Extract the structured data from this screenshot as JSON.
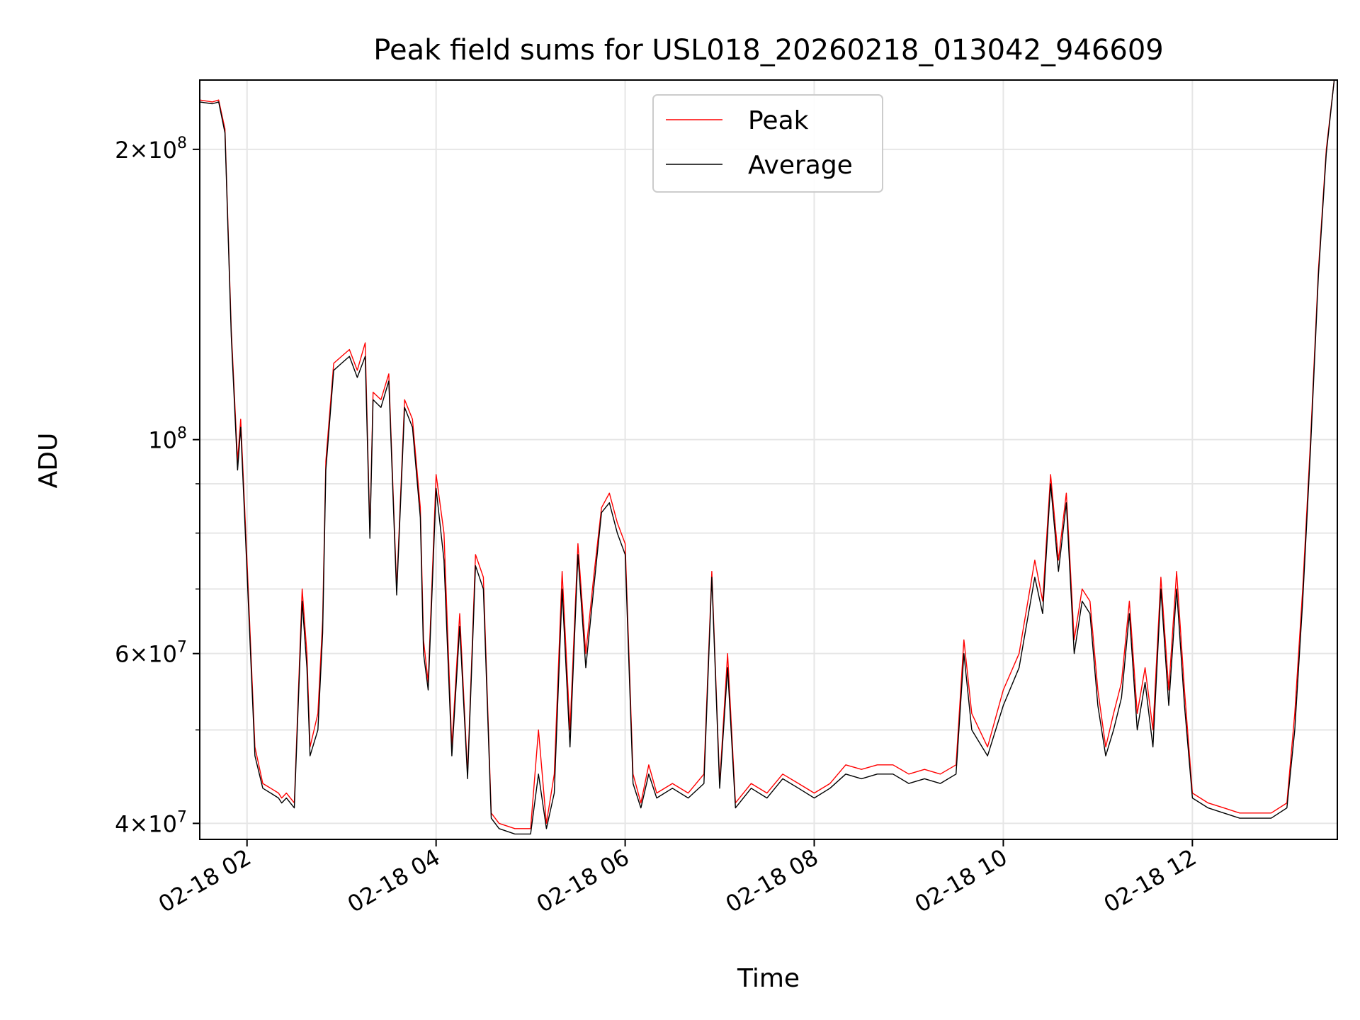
{
  "chart_data": {
    "type": "line",
    "title": "Peak field sums for USL018_20260218_013042_946609",
    "xlabel": "Time",
    "ylabel": "ADU",
    "y_scale": "log",
    "grid": true,
    "legend_position": "top-center",
    "xlim": [
      "2026-02-18 01:30",
      "2026-02-18 13:32"
    ],
    "ylim": [
      38500000,
      236000000
    ],
    "x_ticks": [
      {
        "value": "2026-02-18 02:00",
        "label": "02-18 02"
      },
      {
        "value": "2026-02-18 04:00",
        "label": "02-18 04"
      },
      {
        "value": "2026-02-18 06:00",
        "label": "02-18 06"
      },
      {
        "value": "2026-02-18 08:00",
        "label": "02-18 08"
      },
      {
        "value": "2026-02-18 10:00",
        "label": "02-18 10"
      },
      {
        "value": "2026-02-18 12:00",
        "label": "02-18 12"
      }
    ],
    "y_ticks": [
      {
        "value": 40000000,
        "mantissa": "4",
        "exponent": "7"
      },
      {
        "value": 60000000,
        "mantissa": "6",
        "exponent": "7"
      },
      {
        "value": 100000000,
        "mantissa": "",
        "exponent": "8"
      },
      {
        "value": 200000000,
        "mantissa": "2",
        "exponent": "8"
      }
    ],
    "y_minor_ticks": [
      50000000,
      70000000,
      80000000,
      90000000
    ],
    "series": [
      {
        "name": "Peak",
        "color": "#ff0000",
        "x": [
          "2026-02-18 01:30",
          "2026-02-18 01:38",
          "2026-02-18 01:42",
          "2026-02-18 01:46",
          "2026-02-18 01:50",
          "2026-02-18 01:54",
          "2026-02-18 01:56",
          "2026-02-18 02:00",
          "2026-02-18 02:05",
          "2026-02-18 02:10",
          "2026-02-18 02:15",
          "2026-02-18 02:20",
          "2026-02-18 02:22",
          "2026-02-18 02:25",
          "2026-02-18 02:30",
          "2026-02-18 02:35",
          "2026-02-18 02:38",
          "2026-02-18 02:40",
          "2026-02-18 02:45",
          "2026-02-18 02:48",
          "2026-02-18 02:50",
          "2026-02-18 02:55",
          "2026-02-18 03:00",
          "2026-02-18 03:05",
          "2026-02-18 03:10",
          "2026-02-18 03:15",
          "2026-02-18 03:18",
          "2026-02-18 03:20",
          "2026-02-18 03:25",
          "2026-02-18 03:30",
          "2026-02-18 03:35",
          "2026-02-18 03:40",
          "2026-02-18 03:45",
          "2026-02-18 03:50",
          "2026-02-18 03:52",
          "2026-02-18 03:55",
          "2026-02-18 04:00",
          "2026-02-18 04:05",
          "2026-02-18 04:10",
          "2026-02-18 04:15",
          "2026-02-18 04:20",
          "2026-02-18 04:25",
          "2026-02-18 04:30",
          "2026-02-18 04:35",
          "2026-02-18 04:40",
          "2026-02-18 04:50",
          "2026-02-18 05:00",
          "2026-02-18 05:05",
          "2026-02-18 05:10",
          "2026-02-18 05:15",
          "2026-02-18 05:20",
          "2026-02-18 05:25",
          "2026-02-18 05:30",
          "2026-02-18 05:35",
          "2026-02-18 05:40",
          "2026-02-18 05:45",
          "2026-02-18 05:50",
          "2026-02-18 05:55",
          "2026-02-18 06:00",
          "2026-02-18 06:05",
          "2026-02-18 06:10",
          "2026-02-18 06:15",
          "2026-02-18 06:20",
          "2026-02-18 06:30",
          "2026-02-18 06:40",
          "2026-02-18 06:50",
          "2026-02-18 06:55",
          "2026-02-18 07:00",
          "2026-02-18 07:05",
          "2026-02-18 07:10",
          "2026-02-18 07:20",
          "2026-02-18 07:30",
          "2026-02-18 07:40",
          "2026-02-18 07:50",
          "2026-02-18 08:00",
          "2026-02-18 08:10",
          "2026-02-18 08:20",
          "2026-02-18 08:30",
          "2026-02-18 08:40",
          "2026-02-18 08:50",
          "2026-02-18 09:00",
          "2026-02-18 09:10",
          "2026-02-18 09:20",
          "2026-02-18 09:30",
          "2026-02-18 09:35",
          "2026-02-18 09:40",
          "2026-02-18 09:50",
          "2026-02-18 10:00",
          "2026-02-18 10:10",
          "2026-02-18 10:20",
          "2026-02-18 10:25",
          "2026-02-18 10:30",
          "2026-02-18 10:35",
          "2026-02-18 10:40",
          "2026-02-18 10:45",
          "2026-02-18 10:50",
          "2026-02-18 10:55",
          "2026-02-18 11:00",
          "2026-02-18 11:05",
          "2026-02-18 11:10",
          "2026-02-18 11:15",
          "2026-02-18 11:20",
          "2026-02-18 11:25",
          "2026-02-18 11:30",
          "2026-02-18 11:35",
          "2026-02-18 11:40",
          "2026-02-18 11:45",
          "2026-02-18 11:50",
          "2026-02-18 11:55",
          "2026-02-18 12:00",
          "2026-02-18 12:10",
          "2026-02-18 12:20",
          "2026-02-18 12:30",
          "2026-02-18 12:40",
          "2026-02-18 12:50",
          "2026-02-18 13:00",
          "2026-02-18 13:05",
          "2026-02-18 13:10",
          "2026-02-18 13:15",
          "2026-02-18 13:20",
          "2026-02-18 13:25",
          "2026-02-18 13:30",
          "2026-02-18 13:32"
        ],
        "values": [
          225000000,
          224000000,
          225000000,
          210000000,
          130000000,
          95000000,
          105000000,
          75000000,
          48000000,
          44000000,
          43500000,
          43000000,
          42500000,
          43000000,
          42000000,
          70000000,
          60000000,
          48000000,
          52000000,
          65000000,
          95000000,
          120000000,
          122000000,
          124000000,
          118000000,
          126000000,
          80000000,
          112000000,
          110000000,
          117000000,
          70000000,
          110000000,
          105000000,
          85000000,
          62000000,
          56000000,
          92000000,
          80000000,
          48000000,
          66000000,
          45000000,
          76000000,
          72000000,
          41000000,
          40000000,
          39500000,
          39500000,
          50000000,
          40000000,
          45000000,
          73000000,
          50000000,
          78000000,
          60000000,
          72000000,
          85000000,
          88000000,
          82000000,
          78000000,
          45000000,
          42000000,
          46000000,
          43000000,
          44000000,
          43000000,
          45000000,
          73000000,
          44000000,
          60000000,
          42000000,
          44000000,
          43000000,
          45000000,
          44000000,
          43000000,
          44000000,
          46000000,
          45500000,
          46000000,
          46000000,
          45000000,
          45500000,
          45000000,
          46000000,
          62000000,
          52000000,
          48000000,
          55000000,
          60000000,
          75000000,
          68000000,
          92000000,
          75000000,
          88000000,
          62000000,
          70000000,
          68000000,
          55000000,
          48000000,
          52000000,
          56000000,
          68000000,
          52000000,
          58000000,
          50000000,
          72000000,
          55000000,
          73000000,
          55000000,
          43000000,
          42000000,
          41500000,
          41000000,
          41000000,
          41000000,
          42000000,
          52000000,
          70000000,
          100000000,
          150000000,
          200000000,
          236000000,
          236000000
        ]
      },
      {
        "name": "Average",
        "color": "#000000",
        "x": [
          "2026-02-18 01:30",
          "2026-02-18 01:38",
          "2026-02-18 01:42",
          "2026-02-18 01:46",
          "2026-02-18 01:50",
          "2026-02-18 01:54",
          "2026-02-18 01:56",
          "2026-02-18 02:00",
          "2026-02-18 02:05",
          "2026-02-18 02:10",
          "2026-02-18 02:15",
          "2026-02-18 02:20",
          "2026-02-18 02:22",
          "2026-02-18 02:25",
          "2026-02-18 02:30",
          "2026-02-18 02:35",
          "2026-02-18 02:38",
          "2026-02-18 02:40",
          "2026-02-18 02:45",
          "2026-02-18 02:48",
          "2026-02-18 02:50",
          "2026-02-18 02:55",
          "2026-02-18 03:00",
          "2026-02-18 03:05",
          "2026-02-18 03:10",
          "2026-02-18 03:15",
          "2026-02-18 03:18",
          "2026-02-18 03:20",
          "2026-02-18 03:25",
          "2026-02-18 03:30",
          "2026-02-18 03:35",
          "2026-02-18 03:40",
          "2026-02-18 03:45",
          "2026-02-18 03:50",
          "2026-02-18 03:52",
          "2026-02-18 03:55",
          "2026-02-18 04:00",
          "2026-02-18 04:05",
          "2026-02-18 04:10",
          "2026-02-18 04:15",
          "2026-02-18 04:20",
          "2026-02-18 04:25",
          "2026-02-18 04:30",
          "2026-02-18 04:35",
          "2026-02-18 04:40",
          "2026-02-18 04:50",
          "2026-02-18 05:00",
          "2026-02-18 05:05",
          "2026-02-18 05:10",
          "2026-02-18 05:15",
          "2026-02-18 05:20",
          "2026-02-18 05:25",
          "2026-02-18 05:30",
          "2026-02-18 05:35",
          "2026-02-18 05:40",
          "2026-02-18 05:45",
          "2026-02-18 05:50",
          "2026-02-18 05:55",
          "2026-02-18 06:00",
          "2026-02-18 06:05",
          "2026-02-18 06:10",
          "2026-02-18 06:15",
          "2026-02-18 06:20",
          "2026-02-18 06:30",
          "2026-02-18 06:40",
          "2026-02-18 06:50",
          "2026-02-18 06:55",
          "2026-02-18 07:00",
          "2026-02-18 07:05",
          "2026-02-18 07:10",
          "2026-02-18 07:20",
          "2026-02-18 07:30",
          "2026-02-18 07:40",
          "2026-02-18 07:50",
          "2026-02-18 08:00",
          "2026-02-18 08:10",
          "2026-02-18 08:20",
          "2026-02-18 08:30",
          "2026-02-18 08:40",
          "2026-02-18 08:50",
          "2026-02-18 09:00",
          "2026-02-18 09:10",
          "2026-02-18 09:20",
          "2026-02-18 09:30",
          "2026-02-18 09:35",
          "2026-02-18 09:40",
          "2026-02-18 09:50",
          "2026-02-18 10:00",
          "2026-02-18 10:10",
          "2026-02-18 10:20",
          "2026-02-18 10:25",
          "2026-02-18 10:30",
          "2026-02-18 10:35",
          "2026-02-18 10:40",
          "2026-02-18 10:45",
          "2026-02-18 10:50",
          "2026-02-18 10:55",
          "2026-02-18 11:00",
          "2026-02-18 11:05",
          "2026-02-18 11:10",
          "2026-02-18 11:15",
          "2026-02-18 11:20",
          "2026-02-18 11:25",
          "2026-02-18 11:30",
          "2026-02-18 11:35",
          "2026-02-18 11:40",
          "2026-02-18 11:45",
          "2026-02-18 11:50",
          "2026-02-18 11:55",
          "2026-02-18 12:00",
          "2026-02-18 12:10",
          "2026-02-18 12:20",
          "2026-02-18 12:30",
          "2026-02-18 12:40",
          "2026-02-18 12:50",
          "2026-02-18 13:00",
          "2026-02-18 13:05",
          "2026-02-18 13:10",
          "2026-02-18 13:15",
          "2026-02-18 13:20",
          "2026-02-18 13:25",
          "2026-02-18 13:30",
          "2026-02-18 13:32"
        ],
        "values": [
          224000000,
          223000000,
          224000000,
          208000000,
          128000000,
          93000000,
          103000000,
          73000000,
          47000000,
          43500000,
          43000000,
          42500000,
          42000000,
          42500000,
          41500000,
          68000000,
          58000000,
          47000000,
          50000000,
          63000000,
          93000000,
          118000000,
          120000000,
          122000000,
          116000000,
          122000000,
          79000000,
          110000000,
          108000000,
          115000000,
          69000000,
          108000000,
          103000000,
          83000000,
          60000000,
          55000000,
          89000000,
          75000000,
          47000000,
          64000000,
          44500000,
          74000000,
          70000000,
          40500000,
          39500000,
          39000000,
          39000000,
          45000000,
          39500000,
          43000000,
          70000000,
          48000000,
          76000000,
          58000000,
          70000000,
          84000000,
          86000000,
          80000000,
          76000000,
          44000000,
          41500000,
          45000000,
          42500000,
          43500000,
          42500000,
          44000000,
          72000000,
          43500000,
          58000000,
          41500000,
          43500000,
          42500000,
          44500000,
          43500000,
          42500000,
          43500000,
          45000000,
          44500000,
          45000000,
          45000000,
          44000000,
          44500000,
          44000000,
          45000000,
          60000000,
          50000000,
          47000000,
          53000000,
          58000000,
          72000000,
          66000000,
          90000000,
          73000000,
          86000000,
          60000000,
          68000000,
          66000000,
          53000000,
          47000000,
          50000000,
          54000000,
          66000000,
          50000000,
          56000000,
          48000000,
          70000000,
          53000000,
          70000000,
          53000000,
          42500000,
          41500000,
          41000000,
          40500000,
          40500000,
          40500000,
          41500000,
          50000000,
          68000000,
          98000000,
          148000000,
          198000000,
          236000000,
          236000000
        ]
      }
    ]
  }
}
